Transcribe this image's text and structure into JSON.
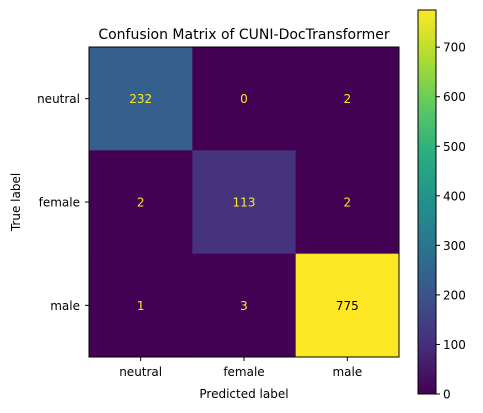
{
  "chart_data": {
    "type": "heatmap",
    "title": "Confusion Matrix of CUNI-DocTransformer",
    "xlabel": "Predicted label",
    "ylabel": "True label",
    "x_categories": [
      "neutral",
      "female",
      "male"
    ],
    "y_categories": [
      "neutral",
      "female",
      "male"
    ],
    "values": [
      [
        232,
        0,
        2
      ],
      [
        2,
        113,
        2
      ],
      [
        1,
        3,
        775
      ]
    ],
    "colormap": "viridis",
    "colorbar": {
      "range": [
        0,
        775
      ],
      "ticks": [
        0,
        100,
        200,
        300,
        400,
        500,
        600,
        700
      ]
    },
    "text_colors": {
      "light_cell": "#000000",
      "dark_cell": "#fde725"
    },
    "grid": false
  }
}
